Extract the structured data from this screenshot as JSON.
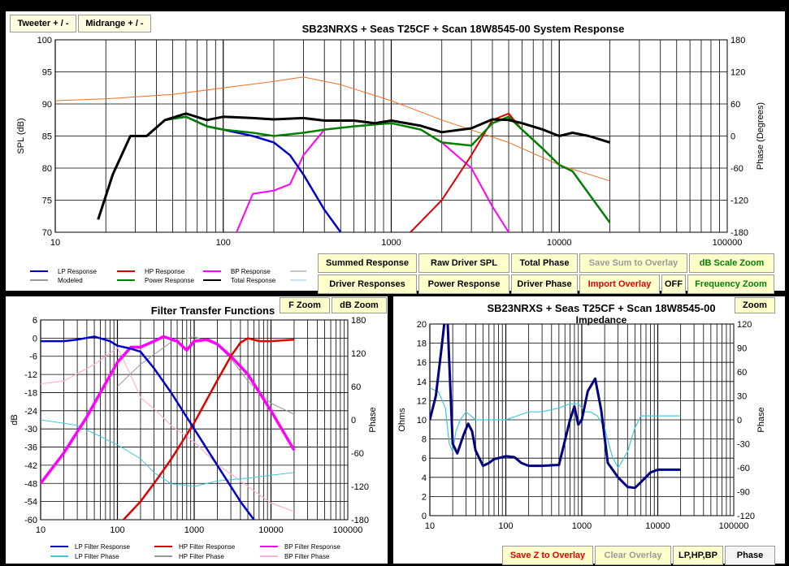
{
  "colors": {
    "lp": "#0000cc",
    "hp": "#e00000",
    "bp": "#ff00ff",
    "power": "#008000",
    "total": "#000000",
    "modeled": "#999999",
    "phase_light": "#88c8f0",
    "phase_pink": "#ffb0d8",
    "phase_orange": "#f07020",
    "impedance": "#000080",
    "impedance_phase": "#40c8d8",
    "button_bg": "#ffffcc",
    "red_text": "#e00000",
    "green_text": "#008000",
    "grey_text": "#999999"
  },
  "top_buttons": {
    "tweeter": "Tweeter  + / -",
    "midrange": "Midrange   + / -"
  },
  "system_controls": {
    "summed": "Summed Response",
    "raw": "Raw Driver SPL",
    "total_phase": "Total Phase",
    "save_sum": "Save Sum to Overlay",
    "db_zoom": "dB Scale Zoom",
    "driver_responses": "Driver Responses",
    "power_response": "Power Response",
    "driver_phase": "Driver Phase",
    "import_overlay": "Import Overlay",
    "off": "OFF",
    "freq_zoom": "Frequency Zoom"
  },
  "filter_controls": {
    "f_zoom": "F Zoom",
    "db_zoom": "dB Zoom"
  },
  "impedance_controls": {
    "zoom": "Zoom",
    "save_z": "Save Z to Overlay",
    "clear": "Clear Overlay",
    "lphpbp": "LP,HP,BP",
    "phase": "Phase"
  },
  "chart_data": [
    {
      "type": "line",
      "title": "SB23NRXS + Seas T25CF + Scan 18W8545-00   System Response",
      "xlabel": "",
      "ylabel": "SPL (dB)",
      "y2label": "Phase (Degrees)",
      "xscale": "log",
      "xlim": [
        10,
        100000
      ],
      "ylim": [
        70,
        100
      ],
      "y2lim": [
        -180,
        180
      ],
      "x_ticks": [
        "10",
        "100",
        "1000",
        "10000",
        "100000"
      ],
      "y_ticks": [
        "70",
        "75",
        "80",
        "85",
        "90",
        "95",
        "100"
      ],
      "y2_ticks": [
        "-180",
        "-120",
        "-60",
        "0",
        "60",
        "120",
        "180"
      ],
      "grid": true,
      "legend": [
        "LP Response",
        "HP Response",
        "BP Response",
        "Modeled",
        "Power Response",
        "Total Response"
      ],
      "series": [
        {
          "name": "Total Response",
          "x": [
            18,
            22,
            28,
            35,
            45,
            60,
            80,
            100,
            150,
            200,
            300,
            400,
            600,
            800,
            1000,
            1500,
            2000,
            3000,
            4000,
            5000,
            6000,
            8000,
            10000,
            12000,
            15000,
            20000
          ],
          "y": [
            72,
            79,
            85,
            85,
            87.5,
            88.5,
            87.5,
            88,
            87.8,
            87.6,
            87.8,
            87.4,
            87.4,
            87,
            87.4,
            86.6,
            85.6,
            86.2,
            87.6,
            87.5,
            87,
            86,
            85,
            85.5,
            85,
            84
          ]
        },
        {
          "name": "Power Response",
          "x": [
            18,
            22,
            28,
            35,
            45,
            60,
            80,
            100,
            150,
            200,
            300,
            400,
            600,
            800,
            1000,
            1500,
            2000,
            3000,
            4000,
            5000,
            6000,
            8000,
            10000,
            12000,
            15000,
            20000
          ],
          "y": [
            72,
            79,
            85,
            85,
            87.5,
            88,
            86.5,
            86,
            85.5,
            85,
            85.5,
            86,
            86.5,
            86.8,
            87,
            86,
            84,
            83.5,
            87,
            88,
            86,
            83,
            80.5,
            79.5,
            76,
            71.5
          ]
        },
        {
          "name": "LP Response",
          "x": [
            18,
            22,
            28,
            35,
            45,
            60,
            80,
            100,
            150,
            200,
            250,
            300,
            400,
            500
          ],
          "y": [
            72,
            79,
            85,
            85,
            87.5,
            88,
            86.5,
            86,
            85,
            84,
            82,
            79,
            73.5,
            70
          ]
        },
        {
          "name": "HP Response",
          "x": [
            1300,
            2000,
            3000,
            4000,
            5000,
            6000,
            8000,
            10000,
            12000,
            15000,
            20000
          ],
          "y": [
            70,
            75,
            82,
            87.5,
            88.5,
            86,
            83,
            80.5,
            79.5,
            76,
            71.5
          ]
        },
        {
          "name": "BP Response",
          "x": [
            120,
            150,
            200,
            250,
            300,
            400,
            600,
            1000,
            1500,
            2000,
            3000,
            4000,
            5000
          ],
          "y": [
            70,
            76,
            76.5,
            77.5,
            82,
            86,
            86.5,
            87,
            86,
            84,
            80,
            74,
            70
          ]
        },
        {
          "name": "Modeled",
          "x": [
            10,
            20,
            50,
            100,
            200,
            300,
            500,
            1000,
            2000,
            5000,
            10000,
            20000
          ],
          "y": [
            90.5,
            90.8,
            91.5,
            92.5,
            93.5,
            94.2,
            93,
            90.5,
            87.5,
            84,
            80.5,
            78
          ]
        }
      ]
    },
    {
      "type": "line",
      "title": "Filter Transfer Functions",
      "ylabel": "dB",
      "y2label": "Phase",
      "xscale": "log",
      "xlim": [
        10,
        100000
      ],
      "ylim": [
        -60,
        6
      ],
      "y2lim": [
        -180,
        180
      ],
      "x_ticks": [
        "10",
        "100",
        "1000",
        "10000",
        "100000"
      ],
      "y_ticks": [
        "6",
        "0",
        "-6",
        "-12",
        "-18",
        "-24",
        "-30",
        "-36",
        "-42",
        "-48",
        "-54",
        "-60"
      ],
      "y2_ticks": [
        "180",
        "120",
        "60",
        "0",
        "-60",
        "-120",
        "-180"
      ],
      "grid": true,
      "legend": [
        "LP Filter Response",
        "HP Filter Response",
        "BP Filter Response",
        "LP Filter Phase",
        "HP Filter Phase",
        "BP Filter Phase"
      ],
      "series": [
        {
          "name": "LP Filter Response",
          "x": [
            10,
            20,
            30,
            50,
            80,
            100,
            150,
            200,
            300,
            500,
            1000,
            2000,
            4000,
            6000
          ],
          "y": [
            -1,
            -1,
            -0.5,
            0.5,
            -1,
            -2.5,
            -3.5,
            -4.5,
            -10,
            -18,
            -30,
            -42,
            -54,
            -60
          ]
        },
        {
          "name": "HP Filter Response",
          "x": [
            120,
            200,
            300,
            500,
            1000,
            2000,
            3000,
            4000,
            5000,
            7000,
            10000,
            20000
          ],
          "y": [
            -60,
            -54,
            -48,
            -40,
            -28,
            -14,
            -6,
            -1.5,
            0,
            -1,
            -1,
            -0.5
          ]
        },
        {
          "name": "BP Filter Response",
          "x": [
            10,
            20,
            40,
            60,
            100,
            150,
            200,
            300,
            400,
            600,
            800,
            1000,
            1500,
            2000,
            3000,
            5000,
            10000,
            20000
          ],
          "y": [
            -48,
            -38,
            -26,
            -18,
            -8,
            -3,
            -3,
            -1,
            0.5,
            -1,
            -4,
            -1,
            -0.5,
            -2,
            -6,
            -12,
            -24,
            -37
          ]
        },
        {
          "name": "LP Filter Phase",
          "x": [
            10,
            30,
            60,
            100,
            200,
            300,
            500,
            1000,
            2000,
            5000,
            10000,
            20000
          ],
          "y": [
            0,
            -10,
            -30,
            -45,
            -70,
            -95,
            -115,
            -120,
            -110,
            -105,
            -100,
            -95
          ]
        },
        {
          "name": "HP Filter Phase",
          "x": [
            100,
            200,
            500,
            1000,
            2000,
            3000,
            5000,
            10000,
            20000
          ],
          "y": [
            60,
            100,
            140,
            150,
            135,
            110,
            70,
            30,
            10
          ]
        },
        {
          "name": "BP Filter Phase",
          "x": [
            10,
            20,
            50,
            100,
            150,
            200,
            300,
            500,
            1000,
            2000,
            5000,
            10000,
            20000
          ],
          "y": [
            65,
            70,
            100,
            130,
            80,
            40,
            20,
            -10,
            -40,
            -80,
            -120,
            -150,
            -165
          ]
        }
      ]
    },
    {
      "type": "line",
      "title": "SB23NRXS + Seas T25CF + Scan 18W8545-00\nImpedance",
      "ylabel": "Ohms",
      "y2label": "Phase",
      "xscale": "log",
      "xlim": [
        10,
        100000
      ],
      "ylim": [
        0,
        20
      ],
      "y2lim": [
        -120,
        120
      ],
      "x_ticks": [
        "10",
        "100",
        "1000",
        "10000",
        "100000"
      ],
      "y_ticks": [
        "20",
        "18",
        "16",
        "14",
        "12",
        "10",
        "8",
        "6",
        "4",
        "2",
        "0"
      ],
      "y2_ticks": [
        "120",
        "90",
        "60",
        "30",
        "0",
        "-30",
        "-60",
        "-90",
        "-120"
      ],
      "grid": true,
      "series": [
        {
          "name": "Impedance",
          "x": [
            10,
            12,
            14,
            16,
            17,
            18,
            20,
            23,
            28,
            32,
            36,
            40,
            50,
            60,
            70,
            80,
            100,
            130,
            160,
            200,
            300,
            500,
            700,
            800,
            900,
            1000,
            1200,
            1500,
            1800,
            2200,
            3000,
            4000,
            5000,
            6000,
            8000,
            10000,
            20000
          ],
          "y": [
            10,
            12.5,
            17,
            21,
            21,
            16,
            7.5,
            6.5,
            8.5,
            9.6,
            8.8,
            6.8,
            5.2,
            5.5,
            5.9,
            6,
            6.2,
            6.1,
            5.5,
            5.2,
            5.2,
            5.3,
            10,
            11.4,
            9.5,
            10,
            13,
            14.3,
            11,
            5.5,
            4,
            3,
            2.9,
            3.5,
            4.5,
            4.8,
            4.8
          ]
        },
        {
          "name": "Impedance Phase",
          "x": [
            10,
            13,
            16,
            18,
            20,
            22,
            25,
            30,
            40,
            60,
            100,
            200,
            300,
            500,
            700,
            900,
            1100,
            1300,
            1600,
            2000,
            2500,
            3000,
            4000,
            5000,
            6000,
            8000,
            10000,
            20000
          ],
          "y": [
            40,
            35,
            15,
            -30,
            -40,
            -15,
            0,
            10,
            0,
            0,
            0,
            10,
            10,
            15,
            20,
            20,
            10,
            10,
            5,
            -10,
            -45,
            -60,
            -40,
            -10,
            5,
            5,
            5,
            5
          ]
        }
      ]
    }
  ]
}
